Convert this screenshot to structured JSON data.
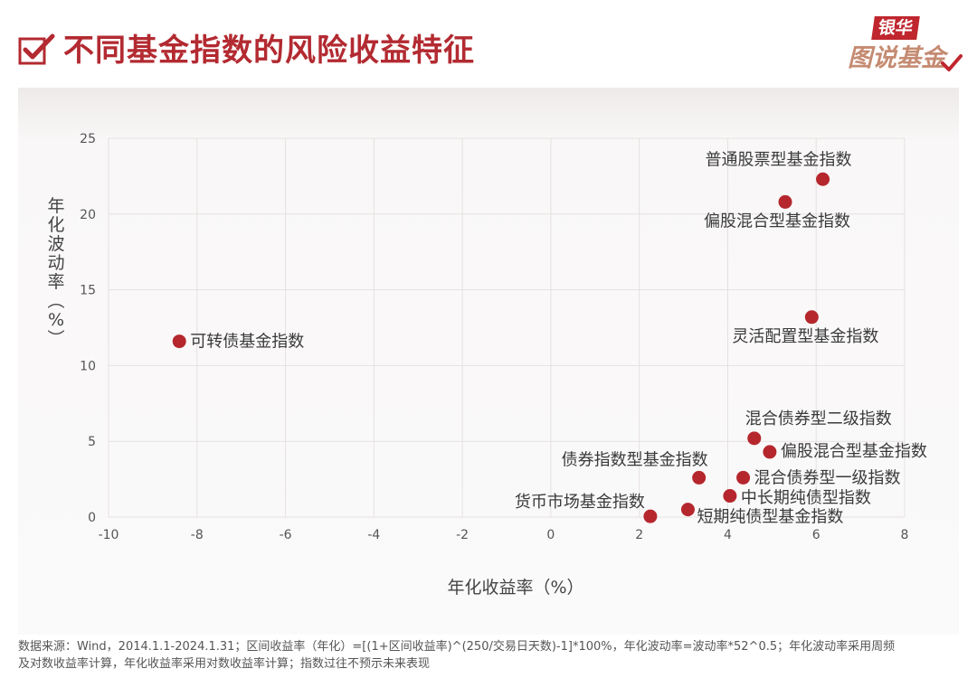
{
  "header": {
    "title": "不同基金指数的风险收益特征",
    "logo_top": "银华",
    "logo_bottom": "图说基金"
  },
  "chart_data": {
    "type": "scatter",
    "title": "不同基金指数的风险收益特征",
    "xlabel": "年化收益率（%）",
    "ylabel": "年化波动率（%）",
    "xlim": [
      -10,
      8
    ],
    "ylim": [
      0,
      25
    ],
    "xticks": [
      "-10",
      "-8",
      "-6",
      "-4",
      "-2",
      "0",
      "2",
      "4",
      "6",
      "8"
    ],
    "yticks": [
      "0",
      "5",
      "10",
      "15",
      "20",
      "25"
    ],
    "grid": true,
    "points": [
      {
        "label": "普通股票型基金指数",
        "x": 6.15,
        "y": 22.3
      },
      {
        "label": "偏股混合型基金指数",
        "x": 5.3,
        "y": 20.8
      },
      {
        "label": "灵活配置型基金指数",
        "x": 5.9,
        "y": 13.2
      },
      {
        "label": "可转债基金指数",
        "x": -8.4,
        "y": 11.6
      },
      {
        "label": "混合债券型二级指数",
        "x": 4.6,
        "y": 5.2
      },
      {
        "label": "偏股混合型基金指数",
        "x": 4.95,
        "y": 4.3
      },
      {
        "label": "债券指数型基金指数",
        "x": 3.35,
        "y": 2.6
      },
      {
        "label": "混合债券型一级指数",
        "x": 4.35,
        "y": 2.6
      },
      {
        "label": "中长期纯债型指数",
        "x": 4.05,
        "y": 1.4
      },
      {
        "label": "货币市场基金指数",
        "x": 2.25,
        "y": 0.05
      },
      {
        "label": "短期纯债型基金指数",
        "x": 3.1,
        "y": 0.5
      }
    ]
  },
  "colors": {
    "accent": "#b32a31",
    "point": "#b5272d",
    "grid": "#e7e1e1",
    "text": "#444444"
  },
  "footnote": {
    "line1": "数据来源：Wind，2014.1.1-2024.1.31；区间收益率（年化）=[(1+区间收益率)^(250/交易日天数)-1]*100%，年化波动率=波动率*52^0.5；年化波动率采用周频",
    "line2": "及对数收益率计算，年化收益率采用对数收益率计算；指数过往不预示未来表现"
  }
}
